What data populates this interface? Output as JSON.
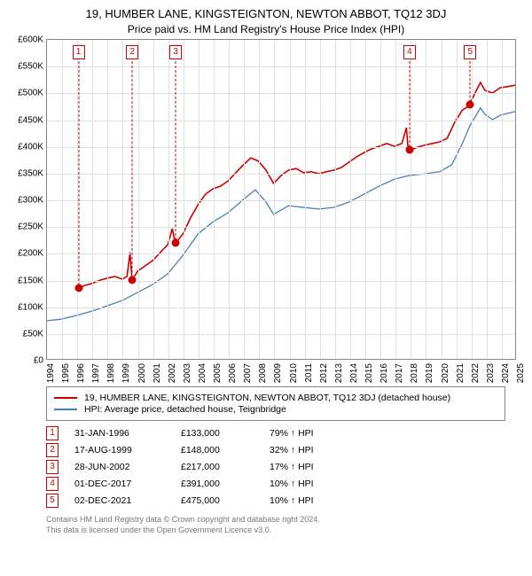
{
  "title": "19, HUMBER LANE, KINGSTEIGNTON, NEWTON ABBOT, TQ12 3DJ",
  "subtitle": "Price paid vs. HM Land Registry's House Price Index (HPI)",
  "chart": {
    "type": "line",
    "xlim": [
      1994,
      2025
    ],
    "ylim": [
      0,
      600
    ],
    "ytick_step": 50,
    "ytick_prefix": "£",
    "ytick_suffix": "K",
    "background_color": "#ffffff",
    "grid_color": "#e0e0e0",
    "border_color": "#888888",
    "series": [
      {
        "name": "19, HUMBER LANE, KINGSTEIGNTON, NEWTON ABBOT, TQ12 3DJ (detached house)",
        "color": "#cc0000",
        "width": 1.6,
        "points": [
          [
            1996.08,
            133
          ],
          [
            1996.5,
            138
          ],
          [
            1997,
            142
          ],
          [
            1997.5,
            148
          ],
          [
            1998,
            152
          ],
          [
            1998.5,
            155
          ],
          [
            1999,
            150
          ],
          [
            1999.3,
            155
          ],
          [
            1999.5,
            200
          ],
          [
            1999.63,
            148
          ],
          [
            2000,
            165
          ],
          [
            2000.5,
            175
          ],
          [
            2001,
            185
          ],
          [
            2001.5,
            200
          ],
          [
            2002,
            215
          ],
          [
            2002.3,
            245
          ],
          [
            2002.49,
            217
          ],
          [
            2003,
            235
          ],
          [
            2003.5,
            265
          ],
          [
            2004,
            290
          ],
          [
            2004.5,
            310
          ],
          [
            2005,
            320
          ],
          [
            2005.5,
            325
          ],
          [
            2006,
            335
          ],
          [
            2006.5,
            350
          ],
          [
            2007,
            365
          ],
          [
            2007.5,
            378
          ],
          [
            2008,
            372
          ],
          [
            2008.5,
            355
          ],
          [
            2009,
            330
          ],
          [
            2009.5,
            345
          ],
          [
            2010,
            355
          ],
          [
            2010.5,
            358
          ],
          [
            2011,
            350
          ],
          [
            2011.5,
            352
          ],
          [
            2012,
            348
          ],
          [
            2012.5,
            352
          ],
          [
            2013,
            355
          ],
          [
            2013.5,
            360
          ],
          [
            2014,
            370
          ],
          [
            2014.5,
            380
          ],
          [
            2015,
            388
          ],
          [
            2015.5,
            395
          ],
          [
            2016,
            400
          ],
          [
            2016.5,
            405
          ],
          [
            2017,
            400
          ],
          [
            2017.5,
            405
          ],
          [
            2017.8,
            435
          ],
          [
            2017.92,
            391
          ],
          [
            2018.5,
            398
          ],
          [
            2019,
            402
          ],
          [
            2019.5,
            405
          ],
          [
            2020,
            408
          ],
          [
            2020.5,
            415
          ],
          [
            2021,
            445
          ],
          [
            2021.5,
            468
          ],
          [
            2021.92,
            475
          ],
          [
            2022.3,
            497
          ],
          [
            2022.7,
            520
          ],
          [
            2023,
            505
          ],
          [
            2023.5,
            500
          ],
          [
            2024,
            510
          ],
          [
            2024.5,
            512
          ],
          [
            2025,
            515
          ]
        ]
      },
      {
        "name": "HPI: Average price, detached house, Teignbridge",
        "color": "#4a7fb5",
        "width": 1.3,
        "points": [
          [
            1994,
            72
          ],
          [
            1995,
            75
          ],
          [
            1996,
            82
          ],
          [
            1997,
            90
          ],
          [
            1998,
            100
          ],
          [
            1999,
            110
          ],
          [
            2000,
            125
          ],
          [
            2001,
            140
          ],
          [
            2002,
            160
          ],
          [
            2003,
            195
          ],
          [
            2004,
            235
          ],
          [
            2005,
            258
          ],
          [
            2006,
            275
          ],
          [
            2007,
            300
          ],
          [
            2007.8,
            318
          ],
          [
            2008.5,
            295
          ],
          [
            2009,
            272
          ],
          [
            2010,
            288
          ],
          [
            2011,
            285
          ],
          [
            2012,
            282
          ],
          [
            2013,
            285
          ],
          [
            2014,
            295
          ],
          [
            2015,
            310
          ],
          [
            2016,
            325
          ],
          [
            2017,
            338
          ],
          [
            2018,
            345
          ],
          [
            2019,
            348
          ],
          [
            2020,
            352
          ],
          [
            2020.8,
            365
          ],
          [
            2021.5,
            405
          ],
          [
            2022,
            438
          ],
          [
            2022.7,
            472
          ],
          [
            2023,
            460
          ],
          [
            2023.5,
            450
          ],
          [
            2024,
            458
          ],
          [
            2024.5,
            462
          ],
          [
            2025,
            465
          ]
        ]
      }
    ],
    "markers": [
      {
        "n": 1,
        "x": 1996.08,
        "y": 133
      },
      {
        "n": 2,
        "x": 1999.63,
        "y": 148
      },
      {
        "n": 3,
        "x": 2002.49,
        "y": 217
      },
      {
        "n": 4,
        "x": 2017.92,
        "y": 391
      },
      {
        "n": 5,
        "x": 2021.92,
        "y": 475
      }
    ]
  },
  "legend": {
    "items": [
      {
        "color": "#cc0000",
        "label": "19, HUMBER LANE, KINGSTEIGNTON, NEWTON ABBOT, TQ12 3DJ (detached house)"
      },
      {
        "color": "#4a7fb5",
        "label": "HPI: Average price, detached house, Teignbridge"
      }
    ]
  },
  "transactions": [
    {
      "n": "1",
      "date": "31-JAN-1996",
      "price": "£133,000",
      "delta": "79% ↑ HPI"
    },
    {
      "n": "2",
      "date": "17-AUG-1999",
      "price": "£148,000",
      "delta": "32% ↑ HPI"
    },
    {
      "n": "3",
      "date": "28-JUN-2002",
      "price": "£217,000",
      "delta": "17% ↑ HPI"
    },
    {
      "n": "4",
      "date": "01-DEC-2017",
      "price": "£391,000",
      "delta": "10% ↑ HPI"
    },
    {
      "n": "5",
      "date": "02-DEC-2021",
      "price": "£475,000",
      "delta": "10% ↑ HPI"
    }
  ],
  "footer": {
    "line1": "Contains HM Land Registry data © Crown copyright and database right 2024.",
    "line2": "This data is licensed under the Open Government Licence v3.0."
  }
}
